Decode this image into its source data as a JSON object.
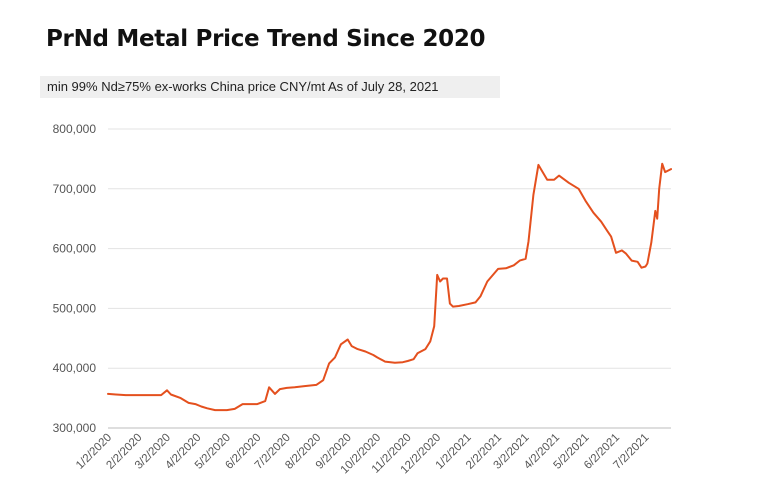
{
  "chart_data": {
    "type": "line",
    "title": "PrNd Metal Price Trend Since 2020",
    "subtitle": "min 99% Nd≥75%   ex-works China price   CNY/mt   As of July 28, 2021",
    "xlabel": "",
    "ylabel": "",
    "ylim": [
      300000,
      800000
    ],
    "yticks": [
      "800,000",
      "700,000",
      "600,000",
      "500,000",
      "400,000",
      "300,000"
    ],
    "xticks": [
      "1/2/2020",
      "2/2/2020",
      "3/2/2020",
      "4/2/2020",
      "5/2/2020",
      "6/2/2020",
      "7/2/2020",
      "8/2/2020",
      "9/2/2020",
      "10/2/2020",
      "11/2/2020",
      "12/2/2020",
      "1/2/2021",
      "2/2/2021",
      "3/2/2021",
      "4/2/2021",
      "5/2/2021",
      "6/2/2021",
      "7/2/2021"
    ],
    "grid": true,
    "line_color": "#e4501e",
    "series": [
      {
        "x": [
          "2020-01-02",
          "2020-01-10",
          "2020-01-20",
          "2020-02-02",
          "2020-02-15",
          "2020-02-25",
          "2020-03-02",
          "2020-03-06",
          "2020-03-16",
          "2020-03-24",
          "2020-03-31",
          "2020-04-06",
          "2020-04-12",
          "2020-04-20",
          "2020-04-27",
          "2020-05-02",
          "2020-05-10",
          "2020-05-18",
          "2020-05-25",
          "2020-06-02",
          "2020-06-10",
          "2020-06-14",
          "2020-06-20",
          "2020-06-25",
          "2020-07-02",
          "2020-07-10",
          "2020-07-20",
          "2020-08-01",
          "2020-08-08",
          "2020-08-14",
          "2020-08-20",
          "2020-08-26",
          "2020-09-02",
          "2020-09-06",
          "2020-09-12",
          "2020-09-20",
          "2020-09-28",
          "2020-10-02",
          "2020-10-10",
          "2020-10-20",
          "2020-10-28",
          "2020-11-02",
          "2020-11-08",
          "2020-11-12",
          "2020-11-20",
          "2020-11-25",
          "2020-11-29",
          "2020-12-02",
          "2020-12-05",
          "2020-12-08",
          "2020-12-12",
          "2020-12-15",
          "2020-12-18",
          "2020-12-24",
          "2021-01-02",
          "2021-01-10",
          "2021-01-15",
          "2021-01-22",
          "2021-02-02",
          "2021-02-10",
          "2021-02-18",
          "2021-02-24",
          "2021-02-28",
          "2021-03-02",
          "2021-03-05",
          "2021-03-10",
          "2021-03-15",
          "2021-03-24",
          "2021-03-31",
          "2021-04-05",
          "2021-04-15",
          "2021-04-25",
          "2021-05-02",
          "2021-05-10",
          "2021-05-18",
          "2021-05-24",
          "2021-05-28",
          "2021-06-02",
          "2021-06-08",
          "2021-06-12",
          "2021-06-18",
          "2021-06-24",
          "2021-06-28",
          "2021-07-02",
          "2021-07-04",
          "2021-07-08",
          "2021-07-12",
          "2021-07-14",
          "2021-07-16",
          "2021-07-19",
          "2021-07-22",
          "2021-07-28"
        ],
        "values": [
          357000,
          356000,
          355000,
          355000,
          355000,
          355000,
          363000,
          356000,
          350000,
          342000,
          340000,
          336000,
          333000,
          330000,
          330000,
          330000,
          332000,
          340000,
          340000,
          340000,
          345000,
          368000,
          357000,
          365000,
          367000,
          368000,
          370000,
          372000,
          380000,
          408000,
          418000,
          440000,
          448000,
          437000,
          432000,
          428000,
          422000,
          418000,
          411000,
          409000,
          410000,
          412000,
          415000,
          425000,
          432000,
          445000,
          470000,
          556000,
          545000,
          550000,
          550000,
          508000,
          503000,
          504000,
          507000,
          510000,
          520000,
          545000,
          566000,
          567000,
          572000,
          580000,
          582000,
          583000,
          612000,
          690000,
          740000,
          715000,
          715000,
          722000,
          710000,
          700000,
          680000,
          660000,
          645000,
          630000,
          620000,
          593000,
          597000,
          592000,
          580000,
          578000,
          568000,
          570000,
          575000,
          610000,
          663000,
          650000,
          700000,
          742000,
          728000,
          733000
        ]
      }
    ]
  }
}
